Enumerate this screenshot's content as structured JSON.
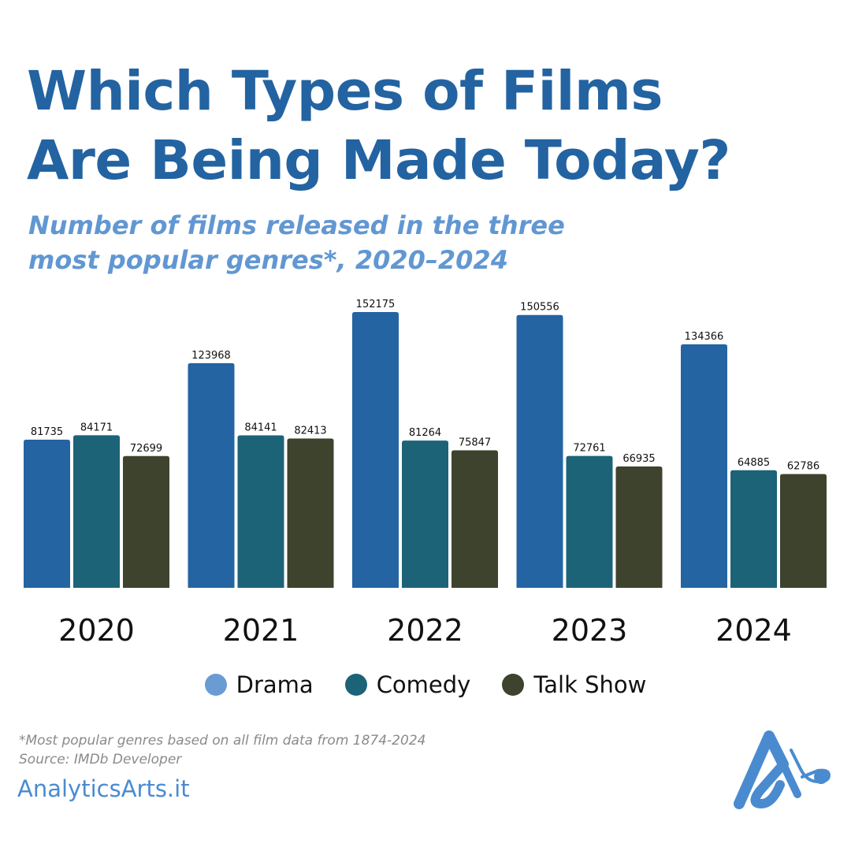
{
  "header": {
    "title_line1": "Which Types of Films",
    "title_line2": "Are Being Made Today?",
    "subtitle_line1": "Number of films released in the three",
    "subtitle_line2": "most popular genres*, 2020–2024"
  },
  "chart_data": {
    "type": "bar",
    "title": "Which Types of Films Are Being Made Today?",
    "subtitle": "Number of films released in the three most popular genres*, 2020–2024",
    "categories": [
      "2020",
      "2021",
      "2022",
      "2023",
      "2024"
    ],
    "series": [
      {
        "name": "Drama",
        "color": "#2464a2",
        "legend_color": "#6a9cd4",
        "values": [
          81735,
          123968,
          152175,
          150556,
          134366
        ]
      },
      {
        "name": "Comedy",
        "color": "#1c6378",
        "legend_color": "#1c6378",
        "values": [
          84171,
          84141,
          81264,
          72761,
          64885
        ]
      },
      {
        "name": "Talk Show",
        "color": "#3d432d",
        "legend_color": "#3d432d",
        "values": [
          72699,
          82413,
          75847,
          66935,
          62786
        ]
      }
    ],
    "ylim": [
      0,
      152175
    ],
    "grid": false,
    "legend_position": "bottom",
    "xlabel": "",
    "ylabel": ""
  },
  "legend": [
    "Drama",
    "Comedy",
    "Talk Show"
  ],
  "footer": {
    "note": "*Most popular genres based on all film data from 1874-2024",
    "source": "Source: IMDb Developer",
    "brand": "AnalyticsArts.it"
  },
  "logo": {
    "icon": "analyticsarts-logo-icon",
    "color": "#4a8bd0"
  }
}
